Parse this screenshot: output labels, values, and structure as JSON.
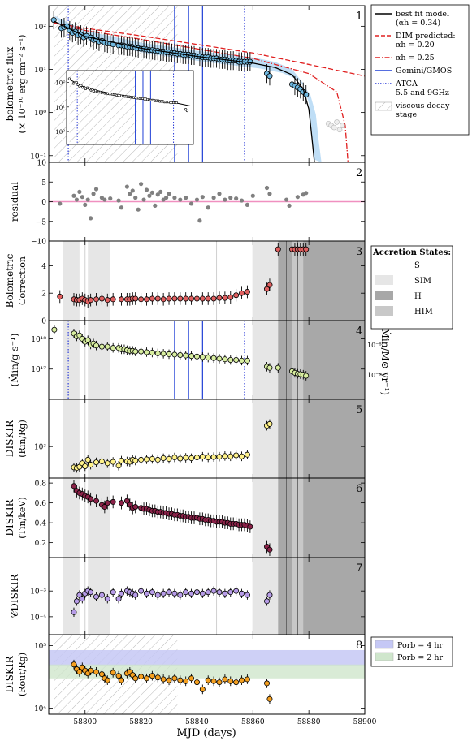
{
  "figure": {
    "xlabel": "MJD (days)",
    "xlim": [
      58787,
      58900
    ],
    "xticks": [
      58800,
      58820,
      58840,
      58860,
      58880,
      58900
    ],
    "bands": {
      "SIM": [
        [
          58792,
          58798
        ],
        [
          58801,
          58809
        ],
        [
          58860,
          58869
        ]
      ],
      "H": [
        [
          58869,
          58900
        ]
      ],
      "HIM": [
        [
          58874,
          58878
        ]
      ],
      "grey_lines": [
        58800,
        58847,
        58860
      ]
    },
    "colors": {
      "sim": "#e6e6e6",
      "h": "#a8a8a8",
      "him": "#c8c8c8",
      "gemini": "#1f3fd6",
      "atca": "#2a3ad8",
      "dim": "#e02020",
      "resid_line": "#f090c0"
    }
  },
  "legend_top": [
    {
      "label": "best fit model",
      "sub": "(αh = 0.34)",
      "style": "solid",
      "color": "#000000"
    },
    {
      "label": "DIM predicted:",
      "sub": "αh = 0.20",
      "style": "dashed",
      "color": "#e02020"
    },
    {
      "label": "αh = 0.25",
      "sub": "",
      "style": "dashdot",
      "color": "#e02020"
    },
    {
      "label": "Gemini/GMOS",
      "sub": "",
      "style": "solid",
      "color": "#1f3fd6"
    },
    {
      "label": "ATCA",
      "sub": "5.5 and 9GHz",
      "style": "dotted",
      "color": "#2a3ad8"
    },
    {
      "label": "viscous decay",
      "sub": "stage",
      "style": "hatch",
      "color": "#999999"
    }
  ],
  "legend_states": {
    "title": "Accretion States:",
    "items": [
      "S",
      "SIM",
      "H",
      "HIM"
    ]
  },
  "legend_bottom": [
    {
      "label": "Porb = 4 hr",
      "color": "#c5c8f5"
    },
    {
      "label": "Porb = 2 hr",
      "color": "#cfe6cc"
    }
  ],
  "chart_data": [
    {
      "panel": "1",
      "type": "scatter",
      "ylabel": "bolometric flux",
      "ylabel2": "(× 10⁻¹⁰ erg cm⁻² s⁻¹)",
      "scale": "log",
      "ylim": [
        0.07,
        300
      ],
      "yticks": [
        {
          "v": 0.1,
          "t": "10⁻¹"
        },
        {
          "v": 1,
          "t": "10⁰"
        },
        {
          "v": 10,
          "t": "10¹"
        },
        {
          "v": 100,
          "t": "10²"
        }
      ],
      "color": "#6fb8e0",
      "x": [
        58788.8,
        58791.5,
        58792.5,
        58793.5,
        58794.5,
        58795.5,
        58796.5,
        58797.5,
        58798.5,
        58799.5,
        58800.5,
        58802,
        58803,
        58804,
        58805,
        58806,
        58807,
        58808,
        58809,
        58810,
        58812,
        58813,
        58814,
        58815,
        58816,
        58817,
        58818,
        58819,
        58820,
        58821,
        58822,
        58823,
        58824,
        58825,
        58826,
        58827,
        58828,
        58829,
        58830,
        58831,
        58832,
        58833,
        58834,
        58835,
        58836,
        58837,
        58838,
        58839,
        58840,
        58841,
        58842,
        58843,
        58844,
        58845,
        58846,
        58847,
        58848,
        58849,
        58850,
        58851,
        58852,
        58853,
        58854,
        58855,
        58856,
        58857,
        58858,
        58859,
        58865,
        58866,
        58874,
        58875,
        58876,
        58877,
        58878,
        58879
      ],
      "y": [
        140,
        90,
        95,
        100,
        80,
        70,
        75,
        62,
        64,
        55,
        60,
        55,
        48,
        50,
        44,
        46,
        42,
        40,
        40,
        38,
        36,
        36,
        35,
        34,
        34,
        33,
        32,
        31,
        30,
        30,
        29,
        28,
        28,
        27,
        27,
        26,
        26,
        25,
        25,
        24,
        24,
        23,
        23,
        22,
        22,
        22,
        21,
        21,
        20,
        20,
        19,
        19,
        19,
        18,
        18,
        18,
        17,
        17,
        17,
        16,
        16,
        16,
        16,
        15,
        15,
        15,
        15,
        15,
        8,
        7,
        4.5,
        4.2,
        3.8,
        3.5,
        3.0,
        2.6
      ],
      "ghost_x": [
        58887,
        58888,
        58889,
        58890,
        58891,
        58892
      ],
      "ghost_y": [
        0.55,
        0.5,
        0.45,
        0.6,
        0.4,
        0.5
      ],
      "model_x": [
        58789,
        58800,
        58820,
        58840,
        58860,
        58868,
        58874,
        58878,
        58880,
        58881,
        58882
      ],
      "model_y": [
        130,
        58,
        31,
        20,
        14,
        11,
        7.5,
        3.5,
        1.2,
        0.3,
        0.06
      ],
      "dim020_x": [
        58789,
        58800,
        58820,
        58840,
        58860,
        58880,
        58900
      ],
      "dim020_y": [
        120,
        90,
        60,
        38,
        24,
        13,
        7
      ],
      "dim025_x": [
        58789,
        58800,
        58820,
        58840,
        58860,
        58880,
        58890,
        58893,
        58894
      ],
      "dim025_y": [
        120,
        80,
        50,
        30,
        18,
        8,
        3,
        0.5,
        0.06
      ],
      "gemini_x": [
        58832,
        58837,
        58842
      ],
      "atca_x": [
        58794,
        58857
      ],
      "hatch": [
        58789,
        58833
      ],
      "inset": {
        "xlim": [
          58787,
          58870
        ],
        "ylim": [
          0.3,
          300
        ],
        "yticks": [
          {
            "v": 1,
            "t": "10⁰"
          },
          {
            "v": 10,
            "t": "10¹"
          },
          {
            "v": 100,
            "t": "10²"
          }
        ]
      }
    },
    {
      "panel": "2",
      "type": "scatter",
      "ylabel": "residual",
      "ylim": [
        -10,
        10
      ],
      "yticks": [
        {
          "v": -10,
          "t": "−10"
        },
        {
          "v": -5,
          "t": "−5"
        },
        {
          "v": 0,
          "t": "0"
        },
        {
          "v": 5,
          "t": "5"
        },
        {
          "v": 10,
          "t": "10"
        }
      ],
      "color": "#808080",
      "x": [
        58791,
        58796,
        58797,
        58798,
        58799,
        58800,
        58801,
        58802,
        58803,
        58804,
        58806,
        58807,
        58809,
        58812,
        58813,
        58815,
        58816,
        58817,
        58818,
        58819,
        58820,
        58821,
        58822,
        58823,
        58824,
        58825,
        58826,
        58827,
        58828,
        58829,
        58830,
        58832,
        58834,
        58836,
        58838,
        58840,
        58841,
        58842,
        58844,
        58846,
        58848,
        58850,
        58852,
        58854,
        58856,
        58858,
        58860,
        58865,
        58866,
        58872,
        58873,
        58876,
        58878,
        58879
      ],
      "y": [
        -0.5,
        1.5,
        0.5,
        2.5,
        1.2,
        -0.8,
        0.5,
        -4.2,
        2.0,
        3.2,
        1.0,
        0.5,
        0.8,
        0.3,
        -1.5,
        3.8,
        2.0,
        2.8,
        1.0,
        -2.0,
        4.5,
        0.5,
        3.0,
        1.5,
        2.3,
        -1.0,
        1.8,
        2.5,
        0.5,
        1.0,
        2.0,
        1.0,
        0.5,
        1.0,
        -0.5,
        0.5,
        -4.8,
        1.2,
        -1.5,
        1.0,
        2.0,
        0.5,
        1.0,
        0.8,
        0.3,
        -0.8,
        1.5,
        3.5,
        2.0,
        0.5,
        -1.0,
        1.2,
        1.8,
        2.2
      ]
    },
    {
      "panel": "3",
      "type": "scatter",
      "ylabel": "Bolometric",
      "ylabel2": "Correction",
      "ylim": [
        0,
        5.8
      ],
      "yticks": [
        {
          "v": 0,
          "t": "0"
        },
        {
          "v": 2,
          "t": "2"
        },
        {
          "v": 4,
          "t": "4"
        }
      ],
      "color": "#e06060",
      "x": [
        58791,
        58796,
        58797,
        58798,
        58799,
        58800,
        58801,
        58802,
        58804,
        58806,
        58808,
        58810,
        58813,
        58815,
        58816,
        58817,
        58818,
        58820,
        58822,
        58824,
        58826,
        58828,
        58830,
        58832,
        58834,
        58836,
        58838,
        58840,
        58842,
        58844,
        58846,
        58848,
        58850,
        58852,
        58854,
        58856,
        58858,
        58865,
        58866,
        58869,
        58874,
        58875,
        58876,
        58877,
        58878,
        58879
      ],
      "y": [
        1.75,
        1.55,
        1.5,
        1.5,
        1.6,
        1.5,
        1.4,
        1.5,
        1.55,
        1.6,
        1.5,
        1.55,
        1.55,
        1.55,
        1.55,
        1.6,
        1.6,
        1.55,
        1.55,
        1.6,
        1.6,
        1.55,
        1.6,
        1.6,
        1.6,
        1.6,
        1.6,
        1.6,
        1.6,
        1.6,
        1.6,
        1.65,
        1.65,
        1.7,
        1.85,
        2.0,
        2.1,
        2.3,
        2.6,
        5.2,
        5.2,
        5.2,
        5.2,
        5.2,
        5.2,
        5.2
      ]
    },
    {
      "panel": "4",
      "type": "scatter",
      "ylabel": "(Ṁin/g s⁻¹)",
      "ylabel_right": "(Ṁin/M⊙ yr⁻¹)",
      "scale": "log",
      "ylim": [
        1e+16,
        4e+18
      ],
      "yticks": [
        {
          "v": 1e+17,
          "t": "10¹⁷"
        },
        {
          "v": 1e+18,
          "t": "10¹⁸"
        }
      ],
      "yticks_right": [
        {
          "v": 6.3e+16,
          "t": "10⁻⁹"
        },
        {
          "v": 6.3e+17,
          "t": "10⁻⁸"
        }
      ],
      "color": "#d8eea0",
      "x": [
        58789,
        58796,
        58797,
        58798,
        58799,
        58800,
        58801,
        58802,
        58803,
        58804,
        58806,
        58808,
        58810,
        58812,
        58813,
        58814,
        58815,
        58816,
        58817,
        58818,
        58820,
        58822,
        58824,
        58826,
        58828,
        58830,
        58832,
        58834,
        58836,
        58838,
        58840,
        58842,
        58844,
        58846,
        58848,
        58850,
        58852,
        58854,
        58856,
        58858,
        58865,
        58866,
        58869,
        58874,
        58875,
        58876,
        58877,
        58878,
        58879
      ],
      "y": [
        2e+18,
        1.5e+18,
        1.2e+18,
        1.3e+18,
        1e+18,
        8e+17,
        9e+17,
        6.5e+17,
        7e+17,
        6e+17,
        5.5e+17,
        5.5e+17,
        5e+17,
        5e+17,
        4.5e+17,
        4.5e+17,
        4.2e+17,
        4e+17,
        4e+17,
        3.8e+17,
        3.8e+17,
        3.6e+17,
        3.5e+17,
        3.3e+17,
        3.2e+17,
        3.1e+17,
        3e+17,
        2.9e+17,
        2.8e+17,
        2.7e+17,
        2.6e+17,
        2.5e+17,
        2.4e+17,
        2.3e+17,
        2.2e+17,
        2.1e+17,
        2e+17,
        2e+17,
        1.9e+17,
        1.9e+17,
        1.2e+17,
        1.1e+17,
        1.1e+17,
        8.5e+16,
        7.5e+16,
        7e+16,
        6.8e+16,
        6.5e+16,
        6e+16
      ],
      "gemini_x": [
        58832,
        58837,
        58842
      ],
      "atca_x": [
        58794,
        58857
      ]
    },
    {
      "panel": "5",
      "type": "scatter",
      "ylabel": "DISKIR",
      "ylabel2": "(Rin/Rg)",
      "scale": "log",
      "ylim": [
        250,
        8000
      ],
      "yticks": [
        {
          "v": 1000,
          "t": "10³"
        }
      ],
      "color": "#fff28a",
      "x": [
        58796,
        58797,
        58798,
        58799,
        58800,
        58801,
        58802,
        58804,
        58806,
        58808,
        58810,
        58812,
        58813,
        58815,
        58816,
        58817,
        58818,
        58820,
        58822,
        58824,
        58826,
        58828,
        58830,
        58832,
        58834,
        58836,
        58838,
        58840,
        58842,
        58844,
        58846,
        58848,
        58850,
        58852,
        58854,
        58856,
        58858,
        58865,
        58866
      ],
      "y": [
        400,
        390,
        410,
        480,
        420,
        560,
        450,
        500,
        520,
        480,
        510,
        430,
        540,
        520,
        510,
        560,
        540,
        560,
        570,
        580,
        560,
        600,
        580,
        620,
        590,
        610,
        600,
        620,
        640,
        620,
        630,
        640,
        660,
        650,
        680,
        650,
        700,
        2500,
        2700
      ]
    },
    {
      "panel": "6",
      "type": "scatter",
      "ylabel": "DISKIR",
      "ylabel2": "(Tin/keV)",
      "ylim": [
        0.05,
        0.85
      ],
      "yticks": [
        {
          "v": 0.2,
          "t": "0.2"
        },
        {
          "v": 0.4,
          "t": "0.4"
        },
        {
          "v": 0.6,
          "t": "0.6"
        },
        {
          "v": 0.8,
          "t": "0.8"
        }
      ],
      "color": "#8a2248",
      "x": [
        58796,
        58797,
        58798,
        58799,
        58800,
        58801,
        58802,
        58804,
        58806,
        58807,
        58808,
        58810,
        58813,
        58815,
        58816,
        58817,
        58818,
        58820,
        58821,
        58822,
        58823,
        58824,
        58825,
        58826,
        58827,
        58828,
        58829,
        58830,
        58831,
        58832,
        58833,
        58834,
        58835,
        58836,
        58837,
        58838,
        58839,
        58840,
        58841,
        58842,
        58843,
        58844,
        58845,
        58846,
        58847,
        58848,
        58849,
        58850,
        58851,
        58852,
        58853,
        58854,
        58855,
        58856,
        58857,
        58858,
        58859,
        58865,
        58866
      ],
      "y": [
        0.77,
        0.72,
        0.7,
        0.69,
        0.67,
        0.66,
        0.64,
        0.62,
        0.58,
        0.56,
        0.6,
        0.61,
        0.6,
        0.62,
        0.58,
        0.55,
        0.56,
        0.55,
        0.54,
        0.54,
        0.53,
        0.52,
        0.52,
        0.51,
        0.51,
        0.5,
        0.5,
        0.49,
        0.49,
        0.48,
        0.48,
        0.47,
        0.47,
        0.46,
        0.46,
        0.45,
        0.45,
        0.45,
        0.44,
        0.44,
        0.43,
        0.43,
        0.42,
        0.42,
        0.41,
        0.41,
        0.41,
        0.4,
        0.4,
        0.39,
        0.39,
        0.39,
        0.38,
        0.38,
        0.38,
        0.37,
        0.36,
        0.16,
        0.13
      ]
    },
    {
      "panel": "7",
      "type": "scatter",
      "ylabel": "𝒞DISKIR",
      "scale": "log",
      "ylim": [
        2e-05,
        0.02
      ],
      "yticks": [
        {
          "v": 0.0001,
          "t": "10⁻⁴"
        },
        {
          "v": 0.001,
          "t": "10⁻³"
        }
      ],
      "color": "#b79ce8",
      "x": [
        58796,
        58797,
        58798,
        58799,
        58800,
        58801,
        58802,
        58804,
        58806,
        58808,
        58810,
        58812,
        58813,
        58815,
        58816,
        58817,
        58818,
        58820,
        58822,
        58824,
        58826,
        58828,
        58830,
        58832,
        58834,
        58836,
        58838,
        58840,
        58842,
        58844,
        58846,
        58848,
        58850,
        58852,
        58854,
        58856,
        58858,
        58865,
        58866
      ],
      "y": [
        0.00015,
        0.0004,
        0.0007,
        0.0005,
        0.0008,
        0.001,
        0.0009,
        0.0006,
        0.0007,
        0.0005,
        0.0009,
        0.0005,
        0.0008,
        0.001,
        0.0009,
        0.0008,
        0.0007,
        0.001,
        0.0008,
        0.0009,
        0.0007,
        0.0008,
        0.0009,
        0.0008,
        0.0007,
        0.0009,
        0.0008,
        0.0009,
        0.0008,
        0.0009,
        0.001,
        0.0009,
        0.0008,
        0.0009,
        0.001,
        0.0008,
        0.0007,
        0.0004,
        0.0007
      ]
    },
    {
      "panel": "8",
      "type": "scatter",
      "ylabel": "DISKIR",
      "ylabel2": "(Rout/Rg)",
      "scale": "log",
      "ylim": [
        8000,
        150000
      ],
      "yticks": [
        {
          "v": 10000,
          "t": "10⁴"
        },
        {
          "v": 100000,
          "t": "10⁵"
        }
      ],
      "color": "#f5a020",
      "x": [
        58796,
        58797,
        58798,
        58799,
        58800,
        58801,
        58802,
        58804,
        58806,
        58807,
        58808,
        58810,
        58812,
        58813,
        58815,
        58816,
        58817,
        58818,
        58820,
        58822,
        58824,
        58826,
        58828,
        58830,
        58832,
        58834,
        58836,
        58838,
        58840,
        58842,
        58844,
        58846,
        58848,
        58850,
        58852,
        58854,
        58856,
        58858,
        58865,
        58866
      ],
      "y": [
        50000,
        42000,
        38000,
        45000,
        40000,
        36000,
        40000,
        38000,
        35000,
        30000,
        28000,
        37000,
        33000,
        28000,
        36000,
        38000,
        34000,
        30000,
        32000,
        30000,
        33000,
        31000,
        29000,
        28000,
        30000,
        28000,
        27000,
        30000,
        26000,
        20000,
        28000,
        27000,
        26000,
        29000,
        27000,
        26000,
        28000,
        29000,
        25000,
        14000
      ],
      "band4": [
        48000,
        85000
      ],
      "band2": [
        30000,
        50000
      ],
      "hatch": [
        58789,
        58833
      ]
    }
  ]
}
